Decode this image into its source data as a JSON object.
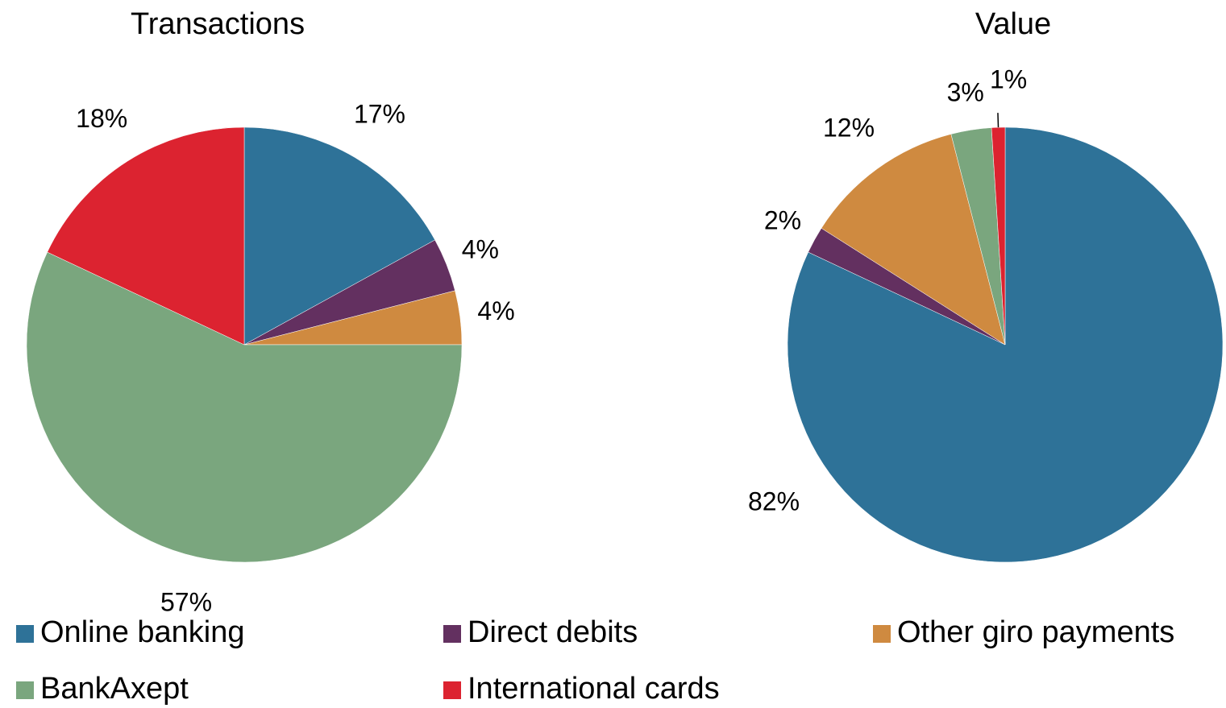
{
  "chart_data": [
    {
      "type": "pie",
      "title": "Transactions",
      "categories": [
        "Online banking",
        "Direct debits",
        "Other giro payments",
        "BankAxept",
        "International cards"
      ],
      "colors": [
        "#2e7298",
        "#633060",
        "#cf8a40",
        "#7aa67e",
        "#dc2330"
      ],
      "values": [
        17,
        4,
        4,
        57,
        18
      ],
      "value_labels": [
        "17%",
        "4%",
        "4%",
        "57%",
        "18%"
      ]
    },
    {
      "type": "pie",
      "title": "Value",
      "values": [
        82,
        2,
        12,
        3,
        1
      ],
      "value_labels": [
        "82%",
        "2%",
        "12%",
        "3%",
        "1%"
      ]
    }
  ]
}
